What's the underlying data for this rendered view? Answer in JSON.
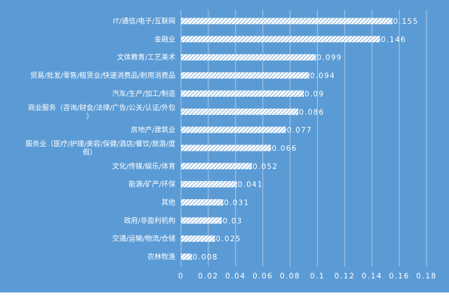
{
  "chart_data": {
    "type": "bar",
    "orientation": "horizontal",
    "title": "",
    "xlabel": "",
    "ylabel": "",
    "grid": true,
    "legend": "none",
    "xlim": [
      0,
      0.18
    ],
    "xticks": [
      "0",
      "0.02",
      "0.04",
      "0.06",
      "0.08",
      "0.1",
      "0.12",
      "0.14",
      "0.16",
      "0.18"
    ],
    "categories": [
      "IT/通信/电子/互联网",
      "金融业",
      "文体教育/工艺美术",
      "贸易/批发/零售/租赁业/快速消费品/耐用消费品",
      "汽车/生产/加工/制造",
      "商业服务（咨询/财会/法律/广告/公关/认证/外包）",
      "房地产/建筑业",
      "服务业（医疗/护理/美容/保健/酒店/餐饮/旅游/度假）",
      "文化/传媒/娱乐/体育",
      "能源/矿产/环保",
      "其他",
      "政府/非盈利机构",
      "交通/运输/物流/仓储",
      "农林牧渔"
    ],
    "category_lines": [
      [
        "IT/通信/电子/互联网"
      ],
      [
        "金融业"
      ],
      [
        "文体教育/工艺美术"
      ],
      [
        "贸易/批发/零售/租赁业/快速消费品/耐用消费品"
      ],
      [
        "汽车/生产/加工/制造"
      ],
      [
        "商业服务（咨询/财会/法律/广告/公关/认证/外包",
        "）"
      ],
      [
        "房地产/建筑业"
      ],
      [
        "服务业（医疗/护理/美容/保健/酒店/餐饮/旅游/度",
        "假）"
      ],
      [
        "文化/传媒/娱乐/体育"
      ],
      [
        "能源/矿产/环保"
      ],
      [
        "其他"
      ],
      [
        "政府/非盈利机构"
      ],
      [
        "交通/运输/物流/仓储"
      ],
      [
        "农林牧渔"
      ]
    ],
    "values": [
      0.155,
      0.146,
      0.099,
      0.094,
      0.09,
      0.086,
      0.077,
      0.066,
      0.052,
      0.041,
      0.031,
      0.03,
      0.025,
      0.008
    ],
    "value_labels": [
      "0.155",
      "0.146",
      "0.099",
      "0.094",
      "0.09",
      "0.086",
      "0.077",
      "0.066",
      "0.052",
      "0.041",
      "0.031",
      "0.03",
      "0.025",
      "0.008"
    ],
    "colors": {
      "background": "#5b9bd5",
      "bar_fill": "#ffffff",
      "bar_hatch": "#5b9bd5",
      "text": "#ffffff",
      "grid": "#a9c9ea"
    }
  }
}
